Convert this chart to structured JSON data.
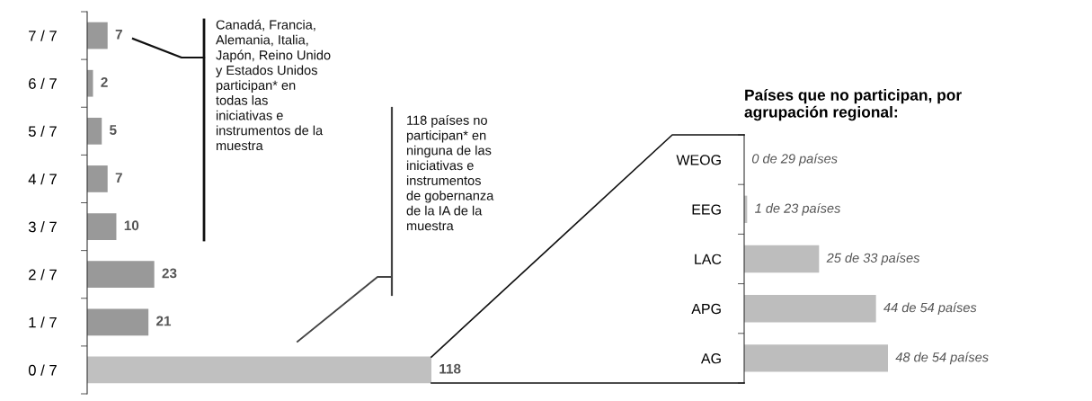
{
  "chart_data": [
    {
      "type": "bar",
      "orientation": "horizontal",
      "categories": [
        "7 / 7",
        "6 / 7",
        "5 / 7",
        "4 / 7",
        "3 / 7",
        "2 / 7",
        "1 / 7",
        "0 / 7"
      ],
      "values": [
        7,
        2,
        5,
        7,
        10,
        23,
        21,
        118
      ],
      "colors": [
        "#999999",
        "#999999",
        "#999999",
        "#999999",
        "#999999",
        "#999999",
        "#999999",
        "#c0c0c0"
      ],
      "data_labels": true,
      "annotations": [
        "Canadá, Francia,\nAlemania, Italia,\nJapón, Reino Unido\ny Estados Unidos\nparticipan* en\ntodas las\niniciativas e\ninstrumentos de la\nmuestra",
        "118 países no\nparticipan* en\nninguna de las\niniciativas e\ninstrumentos\nde gobernanza\nde la IA de la\nmuestra"
      ]
    },
    {
      "type": "bar",
      "orientation": "horizontal",
      "title": "Países que no participan, por\nagrupación regional:",
      "categories": [
        "WEOG",
        "EEG",
        "LAC",
        "APG",
        "AG"
      ],
      "values": [
        0,
        1,
        25,
        44,
        48
      ],
      "color": "#bdbdbd",
      "value_labels": [
        "0 de 29 países",
        "1 de 23 países",
        "25 de 33 países",
        "44 de 54 países",
        "48 de 54 países"
      ]
    }
  ]
}
